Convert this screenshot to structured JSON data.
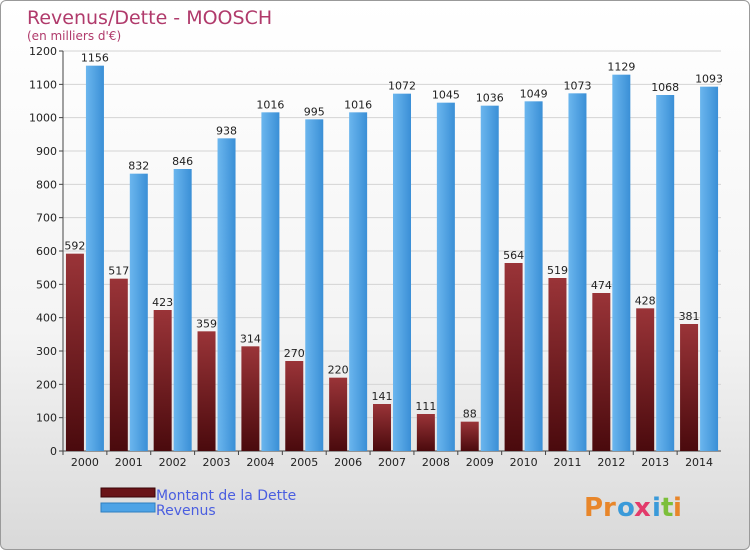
{
  "chart_data": {
    "type": "bar",
    "title": "Revenus/Dette - MOOSCH",
    "subtitle": "(en milliers d'€)",
    "categories": [
      "2000",
      "2001",
      "2002",
      "2003",
      "2004",
      "2005",
      "2006",
      "2007",
      "2008",
      "2009",
      "2010",
      "2011",
      "2012",
      "2013",
      "2014"
    ],
    "series": [
      {
        "name": "Montant de la Dette",
        "color": "#7a1e22",
        "values": [
          592,
          517,
          423,
          359,
          314,
          270,
          220,
          141,
          111,
          88,
          564,
          519,
          474,
          428,
          381
        ]
      },
      {
        "name": "Revenus",
        "color": "#4da3e6",
        "values": [
          1156,
          832,
          846,
          938,
          1016,
          995,
          1016,
          1072,
          1045,
          1036,
          1049,
          1073,
          1129,
          1068,
          1093
        ]
      }
    ],
    "ylim": [
      0,
      1200
    ],
    "yticks": [
      0,
      100,
      200,
      300,
      400,
      500,
      600,
      700,
      800,
      900,
      1000,
      1100,
      1200
    ],
    "grid": true,
    "legend_position": "bottom-left"
  },
  "logo": {
    "letters": [
      "P",
      "r",
      "o",
      "x",
      "i",
      "t",
      "i"
    ],
    "colors": [
      "#e8862a",
      "#e8862a",
      "#3a9ad9",
      "#e23b6b",
      "#3a9ad9",
      "#7cbf3a",
      "#e8862a"
    ]
  }
}
